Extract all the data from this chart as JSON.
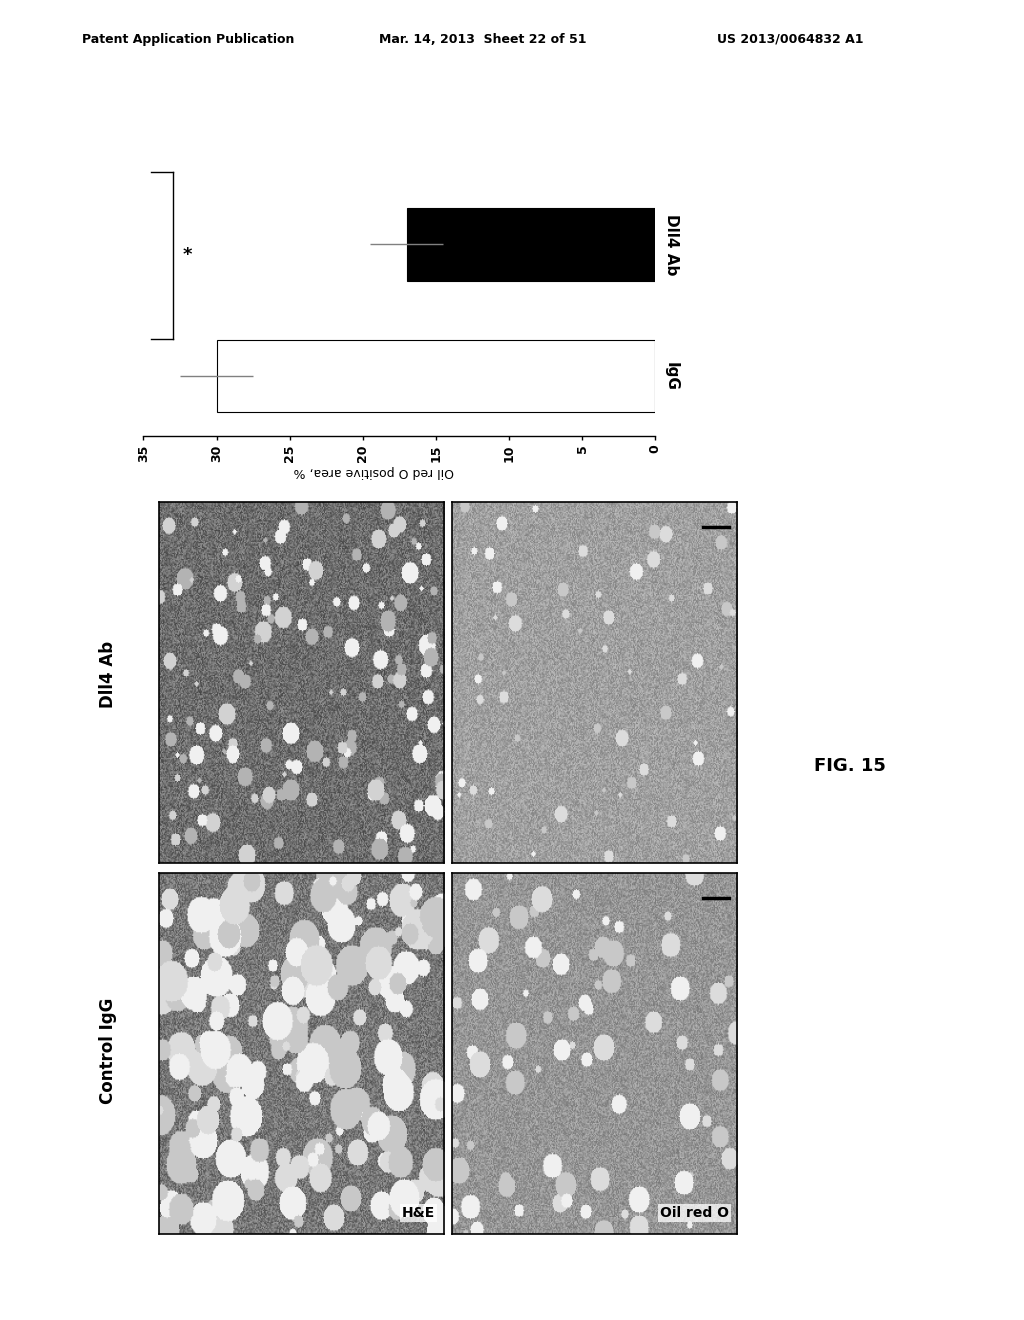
{
  "header_left": "Patent Application Publication",
  "header_mid": "Mar. 14, 2013  Sheet 22 of 51",
  "header_right": "US 2013/0064832 A1",
  "bar_categories": [
    "IgG",
    "Dll4 Ab"
  ],
  "bar_values": [
    30.0,
    17.0
  ],
  "bar_errors": [
    2.5,
    2.5
  ],
  "bar_colors": [
    "white",
    "black"
  ],
  "bar_edgecolors": [
    "black",
    "black"
  ],
  "xticks": [
    0,
    5,
    10,
    15,
    20,
    25,
    30,
    35
  ],
  "xlabel": "Oil red O positive area, %",
  "significance_text": "*",
  "fig15_label": "FIG. 15",
  "bg_color": "white",
  "panel_labels_bottom_left": "H&E",
  "panel_labels_bottom_right": "Oil red O",
  "row_label_top": "Dll4 Ab",
  "row_label_bottom": "Control IgG",
  "chart_bar_gap": 0.15,
  "chart_bar_height": 0.55
}
